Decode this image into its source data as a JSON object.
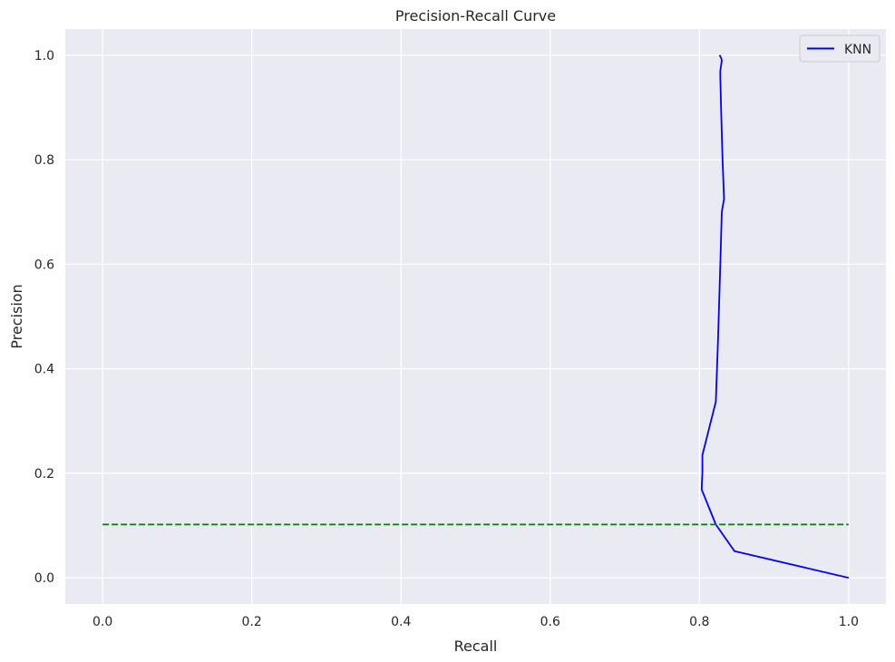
{
  "chart_data": {
    "type": "line",
    "title": "Precision-Recall Curve",
    "xlabel": "Recall",
    "ylabel": "Precision",
    "xlim": [
      -0.05,
      1.05
    ],
    "ylim": [
      -0.05,
      1.05
    ],
    "xticks": [
      0.0,
      0.2,
      0.4,
      0.6,
      0.8,
      1.0
    ],
    "yticks": [
      0.0,
      0.2,
      0.4,
      0.6,
      0.8,
      1.0
    ],
    "xtick_labels": [
      "0.0",
      "0.2",
      "0.4",
      "0.6",
      "0.8",
      "1.0"
    ],
    "ytick_labels": [
      "0.0",
      "0.2",
      "0.4",
      "0.6",
      "0.8",
      "1.0"
    ],
    "grid": true,
    "legend_position": "top-right",
    "series": [
      {
        "name": "KNN",
        "color": "#0000ff",
        "style": "solid",
        "x": [
          1.0,
          0.847,
          0.822,
          0.803,
          0.804,
          0.804,
          0.822,
          0.825,
          0.828,
          0.83,
          0.833,
          0.831,
          0.829,
          0.828,
          0.828,
          0.83,
          0.829,
          0.827
        ],
        "y": [
          0.0,
          0.051,
          0.102,
          0.169,
          0.203,
          0.235,
          0.337,
          0.458,
          0.6,
          0.7,
          0.725,
          0.8,
          0.9,
          0.958,
          0.97,
          0.99,
          0.995,
          1.0
        ]
      },
      {
        "color": "#008000",
        "style": "dashed",
        "x": [
          0.0,
          1.0
        ],
        "y": [
          0.102,
          0.102
        ]
      }
    ]
  }
}
